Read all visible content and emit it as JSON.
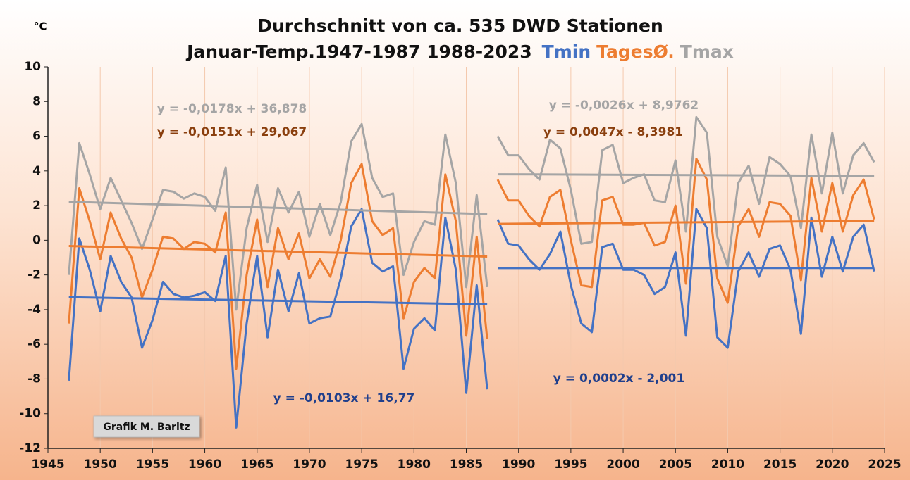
{
  "chart_data": {
    "type": "line",
    "title": "Durchschnitt von ca. 535 DWD Stationen",
    "subtitle": "Januar-Temp.1947-1987 1988-2023",
    "y_unit": "°C",
    "credit": "Grafik M. Baritz",
    "xlim": [
      1945,
      2025
    ],
    "xticks": [
      1945,
      1950,
      1955,
      1960,
      1965,
      1970,
      1975,
      1980,
      1985,
      1990,
      1995,
      2000,
      2005,
      2010,
      2015,
      2020,
      2025
    ],
    "ylim": [
      -12,
      10
    ],
    "yticks": [
      -12,
      -10,
      -8,
      -6,
      -4,
      -2,
      0,
      2,
      4,
      6,
      8,
      10
    ],
    "grid": "x",
    "segments": [
      [
        1947,
        1987
      ],
      [
        1988,
        2024
      ]
    ],
    "x": [
      1947,
      1948,
      1949,
      1950,
      1951,
      1952,
      1953,
      1954,
      1955,
      1956,
      1957,
      1958,
      1959,
      1960,
      1961,
      1962,
      1963,
      1964,
      1965,
      1966,
      1967,
      1968,
      1969,
      1970,
      1971,
      1972,
      1973,
      1974,
      1975,
      1976,
      1977,
      1978,
      1979,
      1980,
      1981,
      1982,
      1983,
      1984,
      1985,
      1986,
      1987,
      1988,
      1989,
      1990,
      1991,
      1992,
      1993,
      1994,
      1995,
      1996,
      1997,
      1998,
      1999,
      2000,
      2001,
      2002,
      2003,
      2004,
      2005,
      2006,
      2007,
      2008,
      2009,
      2010,
      2011,
      2012,
      2013,
      2014,
      2015,
      2016,
      2017,
      2018,
      2019,
      2020,
      2021,
      2022,
      2023,
      2024
    ],
    "series": [
      {
        "name": "Tmin",
        "color": "#4472c4",
        "label_color": "#203f8c",
        "values": [
          -8.1,
          0.1,
          -1.7,
          -4.1,
          -0.9,
          -2.4,
          -3.3,
          -6.2,
          -4.6,
          -2.4,
          -3.1,
          -3.3,
          -3.2,
          -3.0,
          -3.5,
          -0.9,
          -10.8,
          -4.8,
          -0.9,
          -5.6,
          -1.7,
          -4.1,
          -1.9,
          -4.8,
          -4.5,
          -4.4,
          -2.2,
          0.8,
          1.8,
          -1.3,
          -1.8,
          -1.5,
          -7.4,
          -5.1,
          -4.5,
          -5.2,
          1.3,
          -1.7,
          -8.8,
          -2.6,
          -8.6,
          1.2,
          -0.2,
          -0.3,
          -1.1,
          -1.7,
          -0.8,
          0.5,
          -2.6,
          -4.8,
          -5.3,
          -0.4,
          -0.2,
          -1.7,
          -1.7,
          -2.0,
          -3.1,
          -2.7,
          -0.7,
          -5.5,
          1.8,
          0.7,
          -5.6,
          -6.2,
          -1.8,
          -0.7,
          -2.1,
          -0.5,
          -0.3,
          -1.7,
          -5.4,
          1.3,
          -2.1,
          0.2,
          -1.8,
          0.2,
          0.9,
          -1.8
        ],
        "trends": [
          {
            "label": "y = -0,0103x + 16,77",
            "slope": -0.0103,
            "intercept": 16.77
          },
          {
            "label": "y = 0,0002x - 2,001",
            "slope": 0.0002,
            "intercept": -2.001
          }
        ]
      },
      {
        "name": "TagesØ.",
        "color": "#ed7d31",
        "label_color": "#8a3f0e",
        "values": [
          -4.8,
          3.0,
          1.1,
          -1.1,
          1.6,
          0.1,
          -1.0,
          -3.3,
          -1.7,
          0.2,
          0.1,
          -0.5,
          -0.1,
          -0.2,
          -0.7,
          1.6,
          -7.4,
          -2.0,
          1.2,
          -2.7,
          0.7,
          -1.1,
          0.4,
          -2.2,
          -1.1,
          -2.1,
          0.0,
          3.3,
          4.4,
          1.1,
          0.3,
          0.7,
          -4.5,
          -2.4,
          -1.6,
          -2.2,
          3.8,
          1.1,
          -5.5,
          0.2,
          -5.7,
          3.5,
          2.3,
          2.3,
          1.4,
          0.8,
          2.5,
          2.9,
          0.0,
          -2.6,
          -2.7,
          2.3,
          2.5,
          0.9,
          0.9,
          1.0,
          -0.3,
          -0.1,
          2.0,
          -2.5,
          4.7,
          3.5,
          -2.2,
          -3.6,
          0.8,
          1.8,
          0.2,
          2.2,
          2.1,
          1.4,
          -2.3,
          3.6,
          0.5,
          3.3,
          0.5,
          2.6,
          3.5,
          1.2
        ],
        "trends": [
          {
            "label": "y = -0,0151x + 29,067",
            "slope": -0.0151,
            "intercept": 29.067
          },
          {
            "label": "y = 0,0047x - 8,3981",
            "slope": 0.0047,
            "intercept": -8.3981
          }
        ]
      },
      {
        "name": "Tmax",
        "color": "#a5a5a5",
        "label_color": "#a5a5a5",
        "values": [
          -2.0,
          5.6,
          3.8,
          1.8,
          3.6,
          2.3,
          1.0,
          -0.5,
          1.2,
          2.9,
          2.8,
          2.4,
          2.7,
          2.5,
          1.7,
          4.2,
          -4.0,
          0.7,
          3.2,
          -0.1,
          3.0,
          1.6,
          2.8,
          0.2,
          2.1,
          0.3,
          2.2,
          5.7,
          6.7,
          3.6,
          2.5,
          2.7,
          -2.0,
          -0.1,
          1.1,
          0.9,
          6.1,
          3.3,
          -2.7,
          2.6,
          -2.7,
          6.0,
          4.9,
          4.9,
          4.1,
          3.5,
          5.8,
          5.3,
          2.9,
          -0.2,
          -0.1,
          5.2,
          5.5,
          3.3,
          3.6,
          3.8,
          2.3,
          2.2,
          4.6,
          0.5,
          7.1,
          6.2,
          0.2,
          -1.5,
          3.3,
          4.3,
          2.1,
          4.8,
          4.4,
          3.7,
          0.7,
          6.1,
          2.7,
          6.2,
          2.7,
          4.9,
          5.6,
          4.5
        ],
        "trends": [
          {
            "label": "y = -0,0178x + 36,878",
            "slope": -0.0178,
            "intercept": 36.878
          },
          {
            "label": "y = -0,0026x + 8,9762",
            "slope": -0.0026,
            "intercept": 8.9762
          }
        ]
      }
    ]
  }
}
